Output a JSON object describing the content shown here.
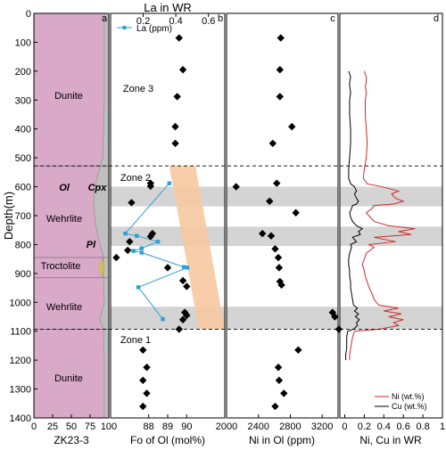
{
  "labels": {
    "y_axis": "Depth(m)",
    "top_axis": "La in WR",
    "panel_a": "a",
    "panel_b": "b",
    "panel_c": "c",
    "panel_d": "d",
    "xlabel_a": "ZK23-3",
    "xlabel_b": "Fo of Ol (mol%)",
    "xlabel_c": "Ni in Ol (ppm)",
    "xlabel_d": "Ni, Cu in WR",
    "zone1": "Zone 1",
    "zone2": "Zone 2",
    "zone3": "Zone 3",
    "legend_la": "La (ppm)",
    "legend_ni": "Ni  (wt.%)",
    "legend_cu": "Cu (wt.%)",
    "lith_dunite_top": "Dunite",
    "lith_wehrlite_upper": "Wehrlite",
    "lith_troctolite": "Troctolite",
    "lith_wehrlite_lower": "Wehrlite",
    "lith_dunite_bottom": "Dunite",
    "mineral_ol": "Ol",
    "mineral_cpx": "Cpx",
    "mineral_pl": "Pl"
  },
  "chart_data": {
    "type": "scatter",
    "depth_axis": {
      "label": "Depth(m)",
      "range": [
        0,
        1400
      ],
      "ticks": [
        0,
        100,
        200,
        300,
        400,
        500,
        600,
        700,
        800,
        900,
        1000,
        1100,
        1200,
        1300,
        1400
      ]
    },
    "zone_boundaries_depth": [
      528,
      1093
    ],
    "gray_bands_depth": [
      [
        600,
        668
      ],
      [
        738,
        805
      ],
      [
        1015,
        1093
      ]
    ],
    "panels": [
      {
        "id": "a",
        "xlabel": "ZK23-3",
        "xlim": [
          0,
          100
        ],
        "xticks": [
          0,
          25,
          50,
          75,
          100
        ],
        "colors": {
          "olivine": "#d9a9c8",
          "cpx": "#bfbfbf",
          "pl": "#e3d23e"
        },
        "lithology": [
          {
            "name": "Dunite",
            "top": 0,
            "bottom": 528
          },
          {
            "name": "Wehrlite",
            "top": 528,
            "bottom": 845
          },
          {
            "name": "Troctolite",
            "top": 845,
            "bottom": 915
          },
          {
            "name": "Wehrlite",
            "top": 915,
            "bottom": 1093
          },
          {
            "name": "Dunite",
            "top": 1093,
            "bottom": 1400
          }
        ],
        "ol_boundary": {
          "depth": [
            0,
            100,
            200,
            300,
            400,
            500,
            560,
            620,
            680,
            740,
            800,
            840,
            880,
            915,
            1000,
            1060,
            1093,
            1200,
            1400
          ],
          "value": [
            94,
            94,
            94,
            94,
            93,
            92,
            85,
            80,
            80,
            83,
            88,
            93,
            91,
            93,
            94,
            88,
            93,
            94,
            94
          ]
        },
        "pl_boundary": {
          "depth": [
            845,
            870,
            890,
            915
          ],
          "value": [
            93,
            88,
            88,
            93
          ]
        }
      },
      {
        "id": "b",
        "xlabel": "Fo of Ol (mol%)",
        "xlim": [
          86,
          92
        ],
        "xticks": [
          88,
          89,
          90
        ],
        "top_axis": {
          "label": "La in WR",
          "xlim": [
            0,
            0.7
          ],
          "xticks": [
            0.2,
            0.4,
            0.6
          ]
        },
        "fo_points": [
          {
            "depth": 85,
            "fo": 89.6
          },
          {
            "depth": 195,
            "fo": 89.8
          },
          {
            "depth": 288,
            "fo": 89.5
          },
          {
            "depth": 392,
            "fo": 89.4
          },
          {
            "depth": 450,
            "fo": 89.4
          },
          {
            "depth": 588,
            "fo": 88.1
          },
          {
            "depth": 598,
            "fo": 88.1
          },
          {
            "depth": 655,
            "fo": 87.1
          },
          {
            "depth": 762,
            "fo": 88.2
          },
          {
            "depth": 772,
            "fo": 88.1
          },
          {
            "depth": 790,
            "fo": 87.0
          },
          {
            "depth": 820,
            "fo": 86.9
          },
          {
            "depth": 845,
            "fo": 86.3
          },
          {
            "depth": 880,
            "fo": 89.0
          },
          {
            "depth": 925,
            "fo": 89.8
          },
          {
            "depth": 945,
            "fo": 90.0
          },
          {
            "depth": 1035,
            "fo": 89.9
          },
          {
            "depth": 1045,
            "fo": 90.0
          },
          {
            "depth": 1060,
            "fo": 89.8
          },
          {
            "depth": 1093,
            "fo": 89.6
          },
          {
            "depth": 1165,
            "fo": 87.7
          },
          {
            "depth": 1225,
            "fo": 87.9
          },
          {
            "depth": 1270,
            "fo": 87.7
          },
          {
            "depth": 1315,
            "fo": 87.9
          },
          {
            "depth": 1360,
            "fo": 87.7
          }
        ],
        "la_series": {
          "name": "La (ppm)",
          "color": "#2e9fd3",
          "points": [
            {
              "depth": 588,
              "la": 0.36
            },
            {
              "depth": 762,
              "la": 0.09
            },
            {
              "depth": 770,
              "la": 0.16
            },
            {
              "depth": 790,
              "la": 0.29
            },
            {
              "depth": 813,
              "la": 0.19
            },
            {
              "depth": 822,
              "la": 0.14
            },
            {
              "depth": 828,
              "la": 0.19
            },
            {
              "depth": 878,
              "la": 0.45
            },
            {
              "depth": 880,
              "la": 0.47
            },
            {
              "depth": 948,
              "la": 0.17
            },
            {
              "depth": 1058,
              "la": 0.32
            }
          ]
        },
        "trend_band": {
          "color": "#f6c9a0",
          "top_left": [
            0.36,
            528
          ],
          "top_right": [
            0.52,
            528
          ],
          "bottom_left": [
            0.54,
            1093
          ],
          "bottom_right": [
            0.7,
            1093
          ]
        }
      },
      {
        "id": "c",
        "xlabel": "Ni in Ol (ppm)",
        "xlim": [
          2000,
          3400
        ],
        "xticks": [
          2000,
          2400,
          2800,
          3200
        ],
        "points": [
          {
            "depth": 85,
            "ni": 2680
          },
          {
            "depth": 195,
            "ni": 2670
          },
          {
            "depth": 288,
            "ni": 2670
          },
          {
            "depth": 392,
            "ni": 2820
          },
          {
            "depth": 450,
            "ni": 2580
          },
          {
            "depth": 588,
            "ni": 2630
          },
          {
            "depth": 600,
            "ni": 2120
          },
          {
            "depth": 650,
            "ni": 2540
          },
          {
            "depth": 690,
            "ni": 2870
          },
          {
            "depth": 762,
            "ni": 2450
          },
          {
            "depth": 770,
            "ni": 2560
          },
          {
            "depth": 815,
            "ni": 2610
          },
          {
            "depth": 845,
            "ni": 2650
          },
          {
            "depth": 880,
            "ni": 2660
          },
          {
            "depth": 928,
            "ni": 2670
          },
          {
            "depth": 940,
            "ni": 2690
          },
          {
            "depth": 1035,
            "ni": 3330
          },
          {
            "depth": 1050,
            "ni": 3360
          },
          {
            "depth": 1093,
            "ni": 3410
          },
          {
            "depth": 1165,
            "ni": 2900
          },
          {
            "depth": 1225,
            "ni": 2650
          },
          {
            "depth": 1270,
            "ni": 2660
          },
          {
            "depth": 1315,
            "ni": 2720
          },
          {
            "depth": 1360,
            "ni": 2610
          }
        ]
      },
      {
        "id": "d",
        "xlabel": "Ni, Cu in WR",
        "xlim": [
          -0.05,
          1.0
        ],
        "xticks": [
          0,
          0.2,
          0.4,
          0.6,
          0.8,
          1.0
        ],
        "series": [
          {
            "name": "Ni  (wt.%)",
            "color": "#cc2a2a",
            "depth": [
              200,
              220,
              240,
              250,
              275,
              300,
              350,
              400,
              450,
              500,
              540,
              570,
              590,
              600,
              615,
              625,
              640,
              650,
              660,
              665,
              675,
              690,
              705,
              720,
              735,
              745,
              755,
              765,
              775,
              790,
              800,
              810,
              830,
              850,
              870,
              890,
              910,
              930,
              950,
              970,
              990,
              1010,
              1020,
              1030,
              1040,
              1050,
              1060,
              1070,
              1080,
              1093,
              1100,
              1120,
              1140,
              1160,
              1180,
              1200
            ],
            "value": [
              0.2,
              0.22,
              0.22,
              0.21,
              0.22,
              0.21,
              0.21,
              0.22,
              0.23,
              0.22,
              0.2,
              0.19,
              0.23,
              0.38,
              0.55,
              0.48,
              0.52,
              0.6,
              0.5,
              0.3,
              0.28,
              0.22,
              0.26,
              0.3,
              0.45,
              0.72,
              0.55,
              0.68,
              0.3,
              0.52,
              0.25,
              0.3,
              0.22,
              0.2,
              0.18,
              0.2,
              0.21,
              0.23,
              0.25,
              0.28,
              0.3,
              0.35,
              0.55,
              0.4,
              0.58,
              0.45,
              0.6,
              0.5,
              0.55,
              0.35,
              0.1,
              0.08,
              0.07,
              0.06,
              0.05,
              0.05
            ]
          },
          {
            "name": "Cu (wt.%)",
            "color": "#000000",
            "depth": [
              200,
              220,
              240,
              250,
              275,
              300,
              350,
              400,
              450,
              500,
              540,
              570,
              590,
              600,
              615,
              625,
              640,
              650,
              660,
              665,
              675,
              690,
              705,
              720,
              735,
              745,
              755,
              765,
              775,
              790,
              800,
              810,
              830,
              850,
              870,
              890,
              910,
              930,
              950,
              970,
              990,
              1010,
              1020,
              1030,
              1040,
              1050,
              1060,
              1070,
              1080,
              1093,
              1100,
              1120,
              1140,
              1160,
              1180,
              1200
            ],
            "value": [
              0.04,
              0.06,
              0.05,
              0.05,
              0.06,
              0.05,
              0.05,
              0.06,
              0.06,
              0.05,
              0.04,
              0.04,
              0.06,
              0.1,
              0.12,
              0.1,
              0.12,
              0.14,
              0.12,
              0.08,
              0.07,
              0.05,
              0.06,
              0.08,
              0.12,
              0.18,
              0.14,
              0.16,
              0.08,
              0.12,
              0.06,
              0.07,
              0.05,
              0.04,
              0.04,
              0.05,
              0.05,
              0.06,
              0.06,
              0.07,
              0.08,
              0.09,
              0.13,
              0.1,
              0.14,
              0.11,
              0.15,
              0.12,
              0.13,
              0.09,
              0.03,
              0.02,
              0.02,
              0.02,
              0.01,
              0.01
            ]
          }
        ]
      }
    ]
  }
}
